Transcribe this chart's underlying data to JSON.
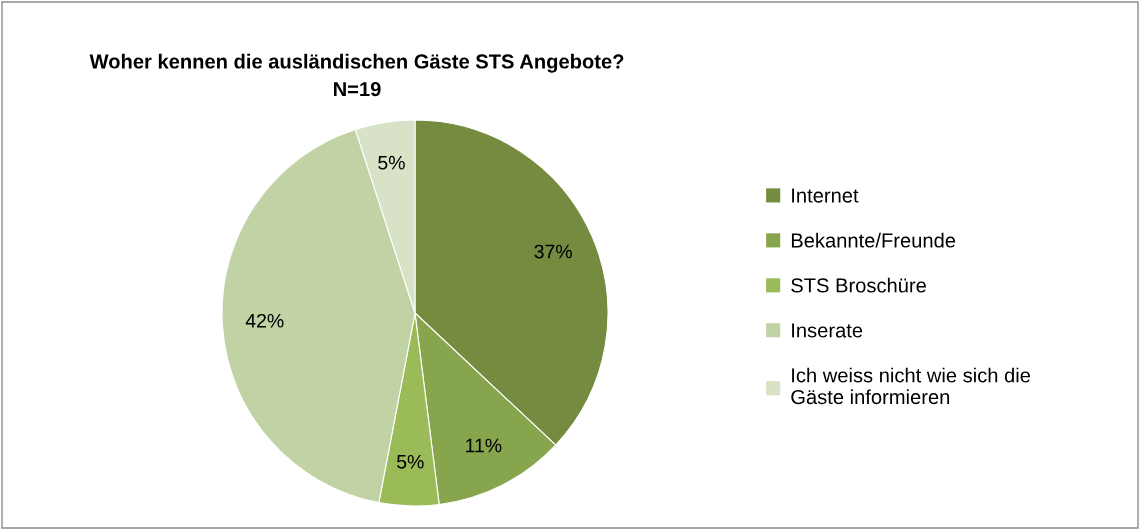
{
  "chart_data": {
    "type": "pie",
    "title": "Woher kennen die ausländischen Gäste STS Angebote?\nN=19",
    "categories": [
      "Internet",
      "Bekannte/Freunde",
      "STS Broschüre",
      "Inserate",
      "Ich weiss nicht wie sich die\nGäste informieren"
    ],
    "values": [
      37,
      11,
      5,
      42,
      5
    ],
    "value_labels": [
      "37%",
      "11%",
      "5%",
      "42%",
      "5%"
    ],
    "colors": [
      "#748b40",
      "#87a54c",
      "#9bbb59",
      "#c1d3a5",
      "#d7e2c6"
    ],
    "legend": "right"
  }
}
